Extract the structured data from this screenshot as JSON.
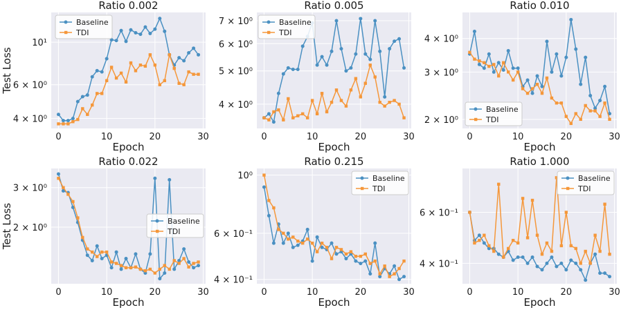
{
  "chart_data": [
    {
      "type": "line",
      "title": "Ratio 0.002",
      "xlabel": "Epoch",
      "ylabel": "Test Loss",
      "yscale": "log",
      "ylim": [
        3.55,
        14.3
      ],
      "xlim": [
        -1.5,
        30.5
      ],
      "xticks": [
        0,
        10,
        20,
        30
      ],
      "xtick_labels": [
        "0",
        "10",
        "20",
        "30"
      ],
      "yticks": [
        4,
        6,
        10
      ],
      "ytick_labels": [
        "4 × 10⁰",
        "6 × 10⁰",
        "10¹"
      ],
      "legend_position": "upper-left",
      "series": [
        {
          "name": "Baseline",
          "color": "#4a90c2",
          "x": [
            0,
            1,
            2,
            3,
            4,
            5,
            6,
            7,
            8,
            9,
            10,
            11,
            12,
            13,
            14,
            15,
            16,
            17,
            18,
            19,
            20,
            21,
            22,
            23,
            24,
            25,
            26,
            27,
            28,
            29
          ],
          "values": [
            4.2,
            3.9,
            3.9,
            4.0,
            4.9,
            5.2,
            5.3,
            6.6,
            7.1,
            7.0,
            8.2,
            10.3,
            10.2,
            11.5,
            10.1,
            11.6,
            11.2,
            11.0,
            12.0,
            11.1,
            11.7,
            13.3,
            11.4,
            8.6,
            7.6,
            8.3,
            8.0,
            8.8,
            9.3,
            8.6
          ]
        },
        {
          "name": "TDI",
          "color": "#f5973a",
          "x": [
            0,
            1,
            2,
            3,
            4,
            5,
            6,
            7,
            8,
            9,
            10,
            11,
            12,
            13,
            14,
            15,
            16,
            17,
            18,
            19,
            20,
            21,
            22,
            23,
            24,
            25,
            26,
            27,
            28,
            29
          ],
          "values": [
            3.75,
            3.75,
            3.75,
            3.85,
            3.95,
            4.5,
            4.2,
            4.7,
            5.4,
            5.4,
            6.3,
            7.4,
            6.5,
            6.9,
            6.2,
            7.8,
            7.1,
            7.6,
            7.5,
            8.6,
            7.6,
            6.0,
            6.3,
            8.6,
            7.3,
            6.1,
            6.0,
            7.0,
            6.8,
            6.8
          ]
        }
      ]
    },
    {
      "type": "line",
      "title": "Ratio 0.005",
      "xlabel": "Epoch",
      "ylabel": "",
      "yscale": "log",
      "ylim": [
        3.4,
        7.4
      ],
      "xlim": [
        -1.5,
        30.5
      ],
      "xticks": [
        0,
        10,
        20,
        30
      ],
      "xtick_labels": [
        "0",
        "10",
        "20",
        "30"
      ],
      "yticks": [
        4,
        5,
        6,
        7
      ],
      "ytick_labels": [
        "4 × 10⁰",
        "5 × 10⁰",
        "6 × 10⁰",
        "7 × 10⁰"
      ],
      "legend_position": "upper-left",
      "series": [
        {
          "name": "Baseline",
          "color": "#4a90c2",
          "x": [
            0,
            1,
            2,
            3,
            4,
            5,
            6,
            7,
            8,
            9,
            10,
            11,
            12,
            13,
            14,
            15,
            16,
            17,
            18,
            19,
            20,
            21,
            22,
            23,
            24,
            25,
            26,
            27,
            28,
            29
          ],
          "values": [
            3.65,
            3.75,
            3.55,
            4.3,
            4.9,
            5.1,
            5.05,
            5.05,
            5.9,
            6.3,
            6.9,
            5.2,
            5.5,
            5.2,
            5.7,
            7.0,
            5.8,
            5.0,
            5.1,
            5.6,
            7.1,
            5.6,
            5.4,
            7.0,
            5.7,
            4.2,
            5.8,
            6.1,
            6.2,
            5.1
          ]
        },
        {
          "name": "TDI",
          "color": "#f5973a",
          "x": [
            0,
            1,
            2,
            3,
            4,
            5,
            6,
            7,
            8,
            9,
            10,
            11,
            12,
            13,
            14,
            15,
            16,
            17,
            18,
            19,
            20,
            21,
            22,
            23,
            24,
            25,
            26,
            27,
            28,
            29
          ],
          "values": [
            3.65,
            3.6,
            3.8,
            3.85,
            3.6,
            4.15,
            3.65,
            3.7,
            3.75,
            3.65,
            4.1,
            3.75,
            4.3,
            3.8,
            4.05,
            4.4,
            4.1,
            3.95,
            4.4,
            4.75,
            4.2,
            4.6,
            5.2,
            4.8,
            4.05,
            3.95,
            4.05,
            4.1,
            4.0,
            3.65
          ]
        }
      ]
    },
    {
      "type": "line",
      "title": "Ratio 0.010",
      "xlabel": "Epoch",
      "ylabel": "",
      "yscale": "log",
      "ylim": [
        1.85,
        5.0
      ],
      "xlim": [
        -1.5,
        30.5
      ],
      "xticks": [
        0,
        10,
        20,
        30
      ],
      "xtick_labels": [
        "0",
        "10",
        "20",
        "30"
      ],
      "yticks": [
        2,
        3,
        4
      ],
      "ytick_labels": [
        "2 × 10⁰",
        "3 × 10⁰",
        "4 × 10⁰"
      ],
      "legend_position": "lower-left",
      "series": [
        {
          "name": "Baseline",
          "color": "#4a90c2",
          "x": [
            0,
            1,
            2,
            3,
            4,
            5,
            6,
            7,
            8,
            9,
            10,
            11,
            12,
            13,
            14,
            15,
            16,
            17,
            18,
            19,
            20,
            21,
            22,
            23,
            24,
            25,
            26,
            27,
            28,
            29
          ],
          "values": [
            3.5,
            4.25,
            3.2,
            3.1,
            3.5,
            3.0,
            3.25,
            3.05,
            3.6,
            3.1,
            3.1,
            2.65,
            2.8,
            2.5,
            2.9,
            2.65,
            3.9,
            3.0,
            3.5,
            2.9,
            3.4,
            4.7,
            3.65,
            2.7,
            3.4,
            2.45,
            2.2,
            2.35,
            2.65,
            2.1
          ]
        },
        {
          "name": "TDI",
          "color": "#f5973a",
          "x": [
            0,
            1,
            2,
            3,
            4,
            5,
            6,
            7,
            8,
            9,
            10,
            11,
            12,
            13,
            14,
            15,
            16,
            17,
            18,
            19,
            20,
            21,
            22,
            23,
            24,
            25,
            26,
            27,
            28,
            29
          ],
          "values": [
            3.55,
            3.35,
            3.3,
            3.25,
            3.15,
            3.2,
            2.9,
            3.25,
            3.0,
            2.8,
            3.0,
            2.6,
            2.5,
            2.6,
            2.7,
            2.5,
            2.85,
            2.4,
            2.3,
            2.3,
            2.05,
            1.93,
            2.1,
            2.0,
            2.25,
            2.15,
            2.15,
            2.05,
            2.3,
            2.0
          ]
        }
      ]
    },
    {
      "type": "line",
      "title": "Ratio 0.022",
      "xlabel": "Epoch",
      "ylabel": "Test Loss",
      "yscale": "log",
      "ylim": [
        1.12,
        3.65
      ],
      "xlim": [
        -1.5,
        30.5
      ],
      "xticks": [
        0,
        10,
        20,
        30
      ],
      "xtick_labels": [
        "0",
        "10",
        "20",
        "30"
      ],
      "yticks": [
        2,
        3
      ],
      "ytick_labels": [
        "2 × 10⁰",
        "3 × 10⁰"
      ],
      "legend_position": "center-right",
      "series": [
        {
          "name": "Baseline",
          "color": "#4a90c2",
          "x": [
            0,
            1,
            2,
            3,
            4,
            5,
            6,
            7,
            8,
            9,
            10,
            11,
            12,
            13,
            14,
            15,
            16,
            17,
            18,
            19,
            20,
            21,
            22,
            23,
            24,
            25,
            26,
            27,
            28,
            29
          ],
          "values": [
            3.45,
            2.9,
            2.85,
            2.45,
            2.1,
            1.75,
            1.5,
            1.42,
            1.65,
            1.45,
            1.5,
            1.32,
            1.55,
            1.3,
            1.45,
            1.32,
            1.52,
            1.3,
            1.25,
            1.52,
            3.3,
            1.18,
            1.25,
            3.25,
            1.3,
            1.42,
            1.6,
            1.4,
            1.32,
            1.35
          ]
        },
        {
          "name": "TDI",
          "color": "#f5973a",
          "x": [
            0,
            1,
            2,
            3,
            4,
            5,
            6,
            7,
            8,
            9,
            10,
            11,
            12,
            13,
            14,
            15,
            16,
            17,
            18,
            19,
            20,
            21,
            22,
            23,
            24,
            25,
            26,
            27,
            28,
            29
          ],
          "values": [
            3.3,
            3.0,
            2.8,
            2.6,
            2.2,
            1.8,
            1.6,
            1.55,
            1.48,
            1.55,
            1.55,
            1.4,
            1.38,
            1.35,
            1.32,
            1.32,
            1.33,
            1.3,
            1.28,
            1.3,
            1.25,
            1.3,
            1.35,
            1.3,
            1.42,
            1.38,
            1.45,
            1.33,
            1.38,
            1.4
          ]
        }
      ]
    },
    {
      "type": "line",
      "title": "Ratio 0.215",
      "xlabel": "Epoch",
      "ylabel": "",
      "yscale": "log",
      "ylim": [
        0.385,
        1.06
      ],
      "xlim": [
        -1.5,
        30.5
      ],
      "xticks": [
        0,
        10,
        20,
        30
      ],
      "xtick_labels": [
        "0",
        "10",
        "20",
        "30"
      ],
      "yticks": [
        0.4,
        0.6,
        1.0
      ],
      "ytick_labels": [
        "4 × 10⁻¹",
        "6 × 10⁻¹",
        "10⁰"
      ],
      "legend_position": "upper-right",
      "series": [
        {
          "name": "Baseline",
          "color": "#4a90c2",
          "x": [
            0,
            1,
            2,
            3,
            4,
            5,
            6,
            7,
            8,
            9,
            10,
            11,
            12,
            13,
            14,
            15,
            16,
            17,
            18,
            19,
            20,
            21,
            22,
            23,
            24,
            25,
            26,
            27,
            28,
            29
          ],
          "values": [
            0.9,
            0.7,
            0.55,
            0.65,
            0.55,
            0.6,
            0.53,
            0.54,
            0.56,
            0.62,
            0.47,
            0.58,
            0.53,
            0.52,
            0.55,
            0.5,
            0.51,
            0.48,
            0.5,
            0.47,
            0.46,
            0.47,
            0.42,
            0.55,
            0.41,
            0.44,
            0.42,
            0.45,
            0.4,
            0.41
          ]
        },
        {
          "name": "TDI",
          "color": "#f5973a",
          "x": [
            0,
            1,
            2,
            3,
            4,
            5,
            6,
            7,
            8,
            9,
            10,
            11,
            12,
            13,
            14,
            15,
            16,
            17,
            18,
            19,
            20,
            21,
            22,
            23,
            24,
            25,
            26,
            27,
            28,
            29
          ],
          "values": [
            1.0,
            0.8,
            0.75,
            0.62,
            0.6,
            0.57,
            0.58,
            0.56,
            0.55,
            0.57,
            0.55,
            0.51,
            0.55,
            0.53,
            0.48,
            0.53,
            0.52,
            0.5,
            0.51,
            0.49,
            0.49,
            0.5,
            0.46,
            0.47,
            0.42,
            0.45,
            0.41,
            0.42,
            0.44,
            0.47
          ]
        }
      ]
    },
    {
      "type": "line",
      "title": "Ratio 1.000",
      "xlabel": "Epoch",
      "ylabel": "",
      "yscale": "log",
      "ylim": [
        0.34,
        0.85
      ],
      "xlim": [
        -1.5,
        30.5
      ],
      "xticks": [
        0,
        10,
        20,
        30
      ],
      "xtick_labels": [
        "0",
        "10",
        "20",
        "30"
      ],
      "yticks": [
        0.4,
        0.6
      ],
      "ytick_labels": [
        "4 × 10⁻¹",
        "6 × 10⁻¹"
      ],
      "legend_position": "upper-right",
      "series": [
        {
          "name": "Baseline",
          "color": "#4a90c2",
          "x": [
            0,
            1,
            2,
            3,
            4,
            5,
            6,
            7,
            8,
            9,
            10,
            11,
            12,
            13,
            14,
            15,
            16,
            17,
            18,
            19,
            20,
            21,
            22,
            23,
            24,
            25,
            26,
            27,
            28,
            29
          ],
          "values": [
            0.6,
            0.48,
            0.5,
            0.47,
            0.45,
            0.45,
            0.43,
            0.42,
            0.44,
            0.41,
            0.42,
            0.42,
            0.4,
            0.42,
            0.39,
            0.38,
            0.4,
            0.42,
            0.39,
            0.4,
            0.38,
            0.41,
            0.4,
            0.38,
            0.35,
            0.4,
            0.43,
            0.37,
            0.37,
            0.36
          ]
        },
        {
          "name": "TDI",
          "color": "#f5973a",
          "x": [
            0,
            1,
            2,
            3,
            4,
            5,
            6,
            7,
            8,
            9,
            10,
            11,
            12,
            13,
            14,
            15,
            16,
            17,
            18,
            19,
            20,
            21,
            22,
            23,
            24,
            25,
            26,
            27,
            28,
            29
          ],
          "values": [
            0.6,
            0.47,
            0.48,
            0.5,
            0.46,
            0.44,
            0.75,
            0.42,
            0.45,
            0.48,
            0.47,
            0.67,
            0.49,
            0.66,
            0.5,
            0.43,
            0.47,
            0.44,
            0.79,
            0.46,
            0.6,
            0.46,
            0.45,
            0.4,
            0.44,
            0.4,
            0.5,
            0.44,
            0.64,
            0.43
          ]
        }
      ]
    }
  ]
}
